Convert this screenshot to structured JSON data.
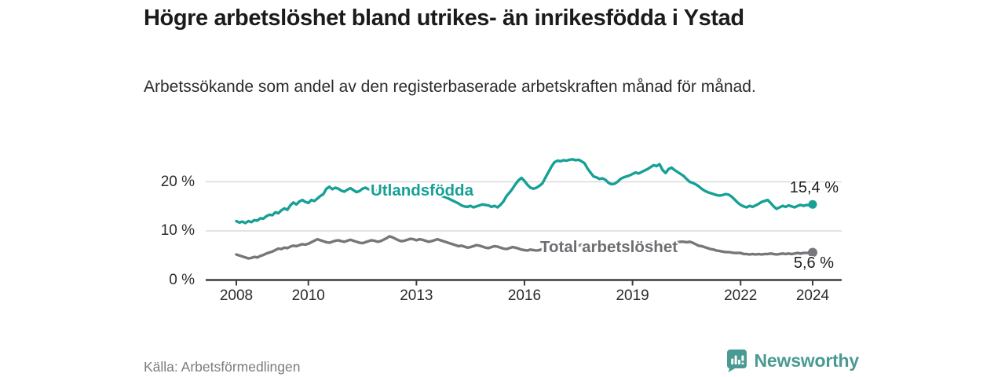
{
  "header": {
    "title": "Högre arbetslöshet bland utrikes- än inrikesfödda i Ystad",
    "subtitle": "Arbetssökande som andel av den registerbaserade arbetskraften månad för månad."
  },
  "footer": {
    "source": "Källa: Arbetsförmedlingen",
    "brand": "Newsworthy",
    "brand_icon": "bar-chart-badge-icon"
  },
  "colors": {
    "foreign_born_line": "#16a096",
    "total_line": "#77767a",
    "grid": "#dadada",
    "axis": "#3d3d3d",
    "brand": "#4a9a93"
  },
  "chart_data": {
    "type": "line",
    "title": "Högre arbetslöshet bland utrikes- än inrikesfödda i Ystad",
    "subtitle": "Arbetssökande som andel av den registerbaserade arbetskraften månad för månad.",
    "frequency": "monthly",
    "x_start": "2008-01",
    "x_end": "2024-01",
    "x_ticks": [
      "2008",
      "2010",
      "2013",
      "2016",
      "2019",
      "2022",
      "2024"
    ],
    "x_tick_years": [
      2008,
      2010,
      2013,
      2016,
      2019,
      2022,
      2024
    ],
    "y_ticks": [
      "0 %",
      "10 %",
      "20 %"
    ],
    "y_tick_values": [
      0,
      10,
      20
    ],
    "ylim": [
      0,
      26
    ],
    "grid": "horizontal",
    "legend_position": "inline-on-line",
    "series": [
      {
        "name": "Utlandsfödda",
        "color": "#16a096",
        "end_label": "15,4 %",
        "end_value": 15.4,
        "values": [
          12.0,
          11.7,
          11.9,
          11.6,
          12.0,
          11.8,
          12.2,
          12.1,
          12.6,
          12.5,
          13.0,
          13.3,
          13.2,
          13.8,
          13.6,
          14.2,
          14.6,
          14.3,
          15.2,
          15.8,
          15.4,
          16.0,
          16.3,
          15.9,
          15.7,
          16.3,
          16.1,
          16.6,
          17.1,
          17.5,
          18.6,
          19.0,
          18.5,
          18.8,
          18.6,
          18.2,
          18.0,
          18.4,
          18.7,
          18.3,
          17.9,
          18.1,
          18.6,
          18.8,
          18.5,
          18.3,
          18.5,
          18.2,
          18.1,
          18.4,
          18.6,
          18.3,
          18.5,
          18.7,
          18.6,
          18.4,
          18.5,
          18.3,
          18.4,
          18.2,
          18.3,
          18.5,
          18.4,
          18.2,
          17.9,
          17.7,
          17.8,
          17.5,
          17.2,
          17.0,
          16.8,
          16.5,
          16.2,
          15.9,
          15.6,
          15.2,
          15.0,
          14.9,
          15.1,
          14.8,
          15.0,
          15.2,
          15.4,
          15.3,
          15.2,
          14.9,
          15.1,
          14.8,
          15.3,
          16.0,
          17.1,
          17.8,
          18.6,
          19.5,
          20.3,
          20.8,
          20.2,
          19.4,
          18.8,
          18.6,
          18.8,
          19.2,
          19.7,
          20.9,
          22.0,
          23.1,
          24.0,
          24.3,
          24.2,
          24.4,
          24.3,
          24.5,
          24.6,
          24.4,
          24.5,
          24.2,
          23.8,
          22.7,
          21.9,
          21.1,
          20.9,
          20.6,
          20.7,
          20.4,
          19.8,
          19.5,
          19.6,
          20.0,
          20.6,
          20.9,
          21.1,
          21.3,
          21.6,
          21.9,
          21.7,
          22.0,
          22.3,
          22.6,
          23.0,
          23.4,
          23.2,
          23.6,
          22.4,
          21.8,
          22.6,
          22.9,
          22.4,
          22.0,
          21.6,
          21.2,
          20.6,
          20.0,
          19.8,
          19.5,
          19.1,
          18.6,
          18.2,
          17.9,
          17.7,
          17.5,
          17.3,
          17.2,
          17.3,
          17.5,
          17.4,
          17.0,
          16.4,
          15.8,
          15.3,
          15.0,
          14.8,
          15.1,
          14.9,
          15.2,
          15.5,
          15.9,
          16.1,
          16.3,
          15.7,
          15.0,
          14.5,
          14.8,
          15.1,
          14.9,
          15.2,
          15.0,
          14.8,
          15.1,
          15.3,
          15.1,
          15.3,
          15.2,
          15.4
        ]
      },
      {
        "name": "Total arbetslöshet",
        "color": "#77767a",
        "end_label": "5,6 %",
        "end_value": 5.6,
        "values": [
          5.2,
          5.0,
          4.8,
          4.6,
          4.4,
          4.5,
          4.7,
          4.6,
          4.9,
          5.1,
          5.4,
          5.6,
          5.8,
          6.1,
          6.4,
          6.3,
          6.6,
          6.5,
          6.8,
          7.0,
          6.9,
          7.1,
          7.3,
          7.2,
          7.4,
          7.7,
          8.0,
          8.3,
          8.1,
          7.9,
          7.7,
          7.6,
          7.8,
          8.0,
          8.1,
          7.9,
          7.8,
          8.0,
          8.2,
          8.0,
          7.8,
          7.6,
          7.5,
          7.7,
          7.9,
          8.1,
          8.0,
          7.8,
          7.9,
          8.2,
          8.5,
          8.9,
          8.7,
          8.4,
          8.1,
          7.9,
          8.0,
          8.2,
          8.4,
          8.3,
          8.1,
          8.3,
          8.2,
          8.0,
          7.8,
          7.9,
          8.1,
          8.3,
          8.1,
          7.9,
          7.7,
          7.5,
          7.3,
          7.1,
          6.9,
          7.0,
          6.8,
          6.6,
          6.7,
          6.9,
          7.1,
          7.0,
          6.8,
          6.6,
          6.5,
          6.7,
          6.9,
          6.8,
          6.6,
          6.4,
          6.3,
          6.5,
          6.7,
          6.6,
          6.4,
          6.2,
          6.1,
          6.0,
          6.2,
          6.1,
          6.0,
          6.1,
          6.3,
          6.5,
          6.4,
          6.6,
          6.8,
          6.7,
          6.8,
          7.0,
          6.9,
          6.7,
          6.6,
          6.8,
          7.0,
          7.2,
          7.1,
          7.3,
          7.2,
          7.0,
          6.9,
          7.1,
          7.0,
          6.8,
          6.7,
          6.9,
          7.1,
          7.0,
          7.2,
          7.4,
          7.3,
          7.1,
          7.0,
          7.2,
          7.1,
          7.3,
          7.2,
          7.4,
          7.5,
          7.4,
          7.2,
          7.1,
          7.3,
          7.2,
          7.2,
          7.3,
          7.5,
          7.7,
          7.8,
          7.8,
          7.7,
          7.8,
          7.6,
          7.3,
          7.0,
          6.9,
          6.7,
          6.5,
          6.3,
          6.2,
          6.0,
          5.9,
          5.8,
          5.7,
          5.7,
          5.6,
          5.5,
          5.5,
          5.5,
          5.3,
          5.3,
          5.2,
          5.3,
          5.2,
          5.3,
          5.2,
          5.3,
          5.3,
          5.4,
          5.3,
          5.2,
          5.3,
          5.4,
          5.3,
          5.4,
          5.3,
          5.4,
          5.5,
          5.4,
          5.5,
          5.5,
          5.5,
          5.6
        ]
      }
    ]
  }
}
